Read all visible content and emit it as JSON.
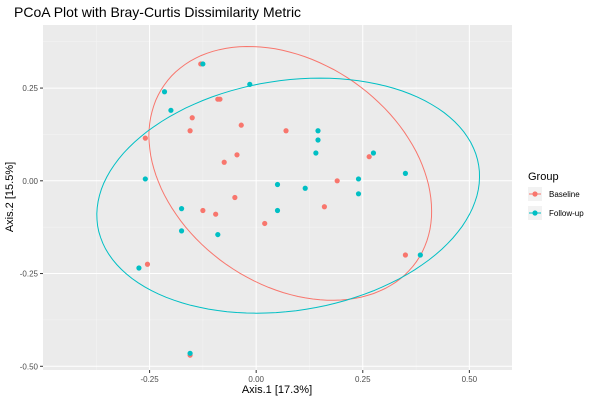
{
  "chart_data": {
    "type": "scatter",
    "title": "PCoA Plot with Bray-Curtis Dissimilarity Metric",
    "xlabel": "Axis.1   [17.3%]",
    "ylabel": "Axis.2   [15.5%]",
    "xlim": [
      -0.5,
      0.6
    ],
    "ylim": [
      -0.51,
      0.42
    ],
    "x_ticks": [
      -0.25,
      0.0,
      0.25,
      0.5
    ],
    "x_tick_labels": [
      "-0.25",
      "0.00",
      "0.25",
      "0.50"
    ],
    "y_ticks": [
      -0.5,
      -0.25,
      0.0,
      0.25
    ],
    "y_tick_labels": [
      "-0.50",
      "-0.25",
      "0.00",
      "0.25"
    ],
    "grid": true,
    "background": "#ebebeb",
    "legend": {
      "title": "Group",
      "position": "right"
    },
    "series": [
      {
        "name": "Baseline",
        "color": "#f8766d",
        "points": [
          [
            -0.13,
            0.315
          ],
          [
            -0.26,
            0.115
          ],
          [
            -0.15,
            0.17
          ],
          [
            -0.155,
            0.135
          ],
          [
            -0.09,
            0.22
          ],
          [
            -0.085,
            0.22
          ],
          [
            -0.035,
            0.15
          ],
          [
            0.07,
            0.135
          ],
          [
            -0.075,
            0.05
          ],
          [
            -0.045,
            0.07
          ],
          [
            -0.05,
            -0.045
          ],
          [
            -0.125,
            -0.08
          ],
          [
            -0.095,
            -0.09
          ],
          [
            0.02,
            -0.115
          ],
          [
            0.16,
            -0.07
          ],
          [
            0.19,
            0.0
          ],
          [
            0.265,
            0.065
          ],
          [
            0.35,
            -0.2
          ],
          [
            -0.255,
            -0.225
          ],
          [
            -0.155,
            -0.47
          ]
        ],
        "ellipse": {
          "cx": 0.08,
          "cy": 0.02,
          "rx": 0.415,
          "ry": 0.3,
          "angle_deg": -35
        }
      },
      {
        "name": "Follow-up",
        "color": "#00bfc4",
        "points": [
          [
            -0.125,
            0.315
          ],
          [
            -0.215,
            0.24
          ],
          [
            -0.2,
            0.19
          ],
          [
            -0.015,
            0.26
          ],
          [
            0.145,
            0.135
          ],
          [
            0.145,
            0.11
          ],
          [
            0.14,
            0.075
          ],
          [
            0.275,
            0.075
          ],
          [
            0.35,
            0.02
          ],
          [
            0.24,
            0.005
          ],
          [
            0.24,
            -0.035
          ],
          [
            0.115,
            -0.02
          ],
          [
            0.05,
            -0.01
          ],
          [
            0.05,
            -0.08
          ],
          [
            -0.26,
            0.005
          ],
          [
            -0.175,
            -0.075
          ],
          [
            -0.175,
            -0.135
          ],
          [
            -0.09,
            -0.145
          ],
          [
            -0.275,
            -0.235
          ],
          [
            0.385,
            -0.2
          ],
          [
            -0.155,
            -0.465
          ]
        ],
        "ellipse": {
          "cx": 0.075,
          "cy": -0.04,
          "rx": 0.52,
          "ry": 0.31,
          "angle_deg": 9
        }
      }
    ]
  }
}
